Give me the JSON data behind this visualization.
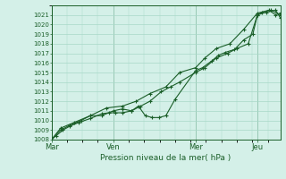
{
  "background_color": "#d4f0e8",
  "grid_color": "#a8d8c8",
  "line_color": "#1a5e28",
  "xlabel": "Pression niveau de la mer( hPa )",
  "ylim": [
    1008,
    1022
  ],
  "yticks": [
    1008,
    1009,
    1010,
    1011,
    1012,
    1013,
    1014,
    1015,
    1016,
    1017,
    1018,
    1019,
    1020,
    1021
  ],
  "xtick_labels": [
    "Mar",
    "Ven",
    "Mer",
    "Jeu"
  ],
  "xtick_positions": [
    0.0,
    0.27,
    0.63,
    0.9
  ],
  "xlim": [
    0.0,
    1.0
  ],
  "vline_positions": [
    0.0,
    0.27,
    0.63,
    0.9
  ],
  "series1_x": [
    0.0,
    0.02,
    0.05,
    0.08,
    0.12,
    0.17,
    0.22,
    0.25,
    0.28,
    0.31,
    0.35,
    0.38,
    0.41,
    0.44,
    0.47,
    0.5,
    0.54,
    0.63,
    0.66,
    0.7,
    0.73,
    0.76,
    0.8,
    0.84,
    0.88,
    0.9,
    0.92,
    0.95,
    0.98,
    1.0
  ],
  "series1_y": [
    1008.0,
    1008.4,
    1009.0,
    1009.4,
    1009.8,
    1010.2,
    1010.7,
    1010.8,
    1010.8,
    1010.8,
    1011.0,
    1011.5,
    1010.5,
    1010.3,
    1010.3,
    1010.5,
    1012.2,
    1015.2,
    1015.5,
    1016.2,
    1016.8,
    1017.1,
    1017.4,
    1018.4,
    1019.0,
    1021.0,
    1021.3,
    1021.5,
    1021.0,
    1021.2
  ],
  "series2_x": [
    0.0,
    0.04,
    0.08,
    0.13,
    0.17,
    0.22,
    0.27,
    0.31,
    0.35,
    0.39,
    0.43,
    0.48,
    0.52,
    0.56,
    0.63,
    0.67,
    0.72,
    0.77,
    0.81,
    0.86,
    0.9,
    0.94,
    0.98,
    1.0
  ],
  "series2_y": [
    1008.0,
    1009.0,
    1009.5,
    1010.0,
    1010.5,
    1010.5,
    1011.0,
    1011.2,
    1011.0,
    1011.5,
    1012.0,
    1013.0,
    1013.5,
    1014.0,
    1015.0,
    1015.5,
    1016.5,
    1017.0,
    1017.5,
    1018.0,
    1021.0,
    1021.3,
    1021.5,
    1020.7
  ],
  "series3_x": [
    0.0,
    0.04,
    0.1,
    0.17,
    0.24,
    0.31,
    0.37,
    0.43,
    0.5,
    0.56,
    0.63,
    0.67,
    0.72,
    0.78,
    0.84,
    0.9,
    0.96,
    1.0
  ],
  "series3_y": [
    1008.0,
    1009.2,
    1009.8,
    1010.5,
    1011.3,
    1011.5,
    1012.0,
    1012.8,
    1013.5,
    1015.0,
    1015.5,
    1016.5,
    1017.5,
    1018.0,
    1019.5,
    1021.2,
    1021.5,
    1021.0
  ]
}
